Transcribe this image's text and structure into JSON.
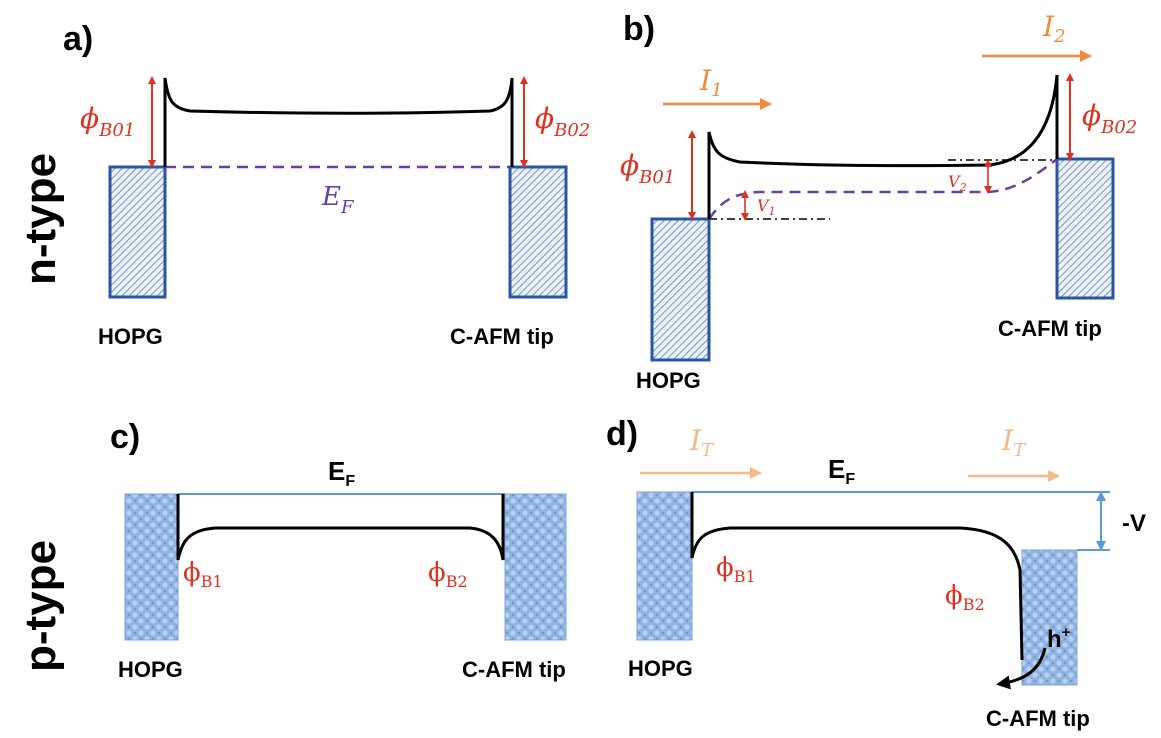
{
  "rows": {
    "top": "n-type",
    "bottom": "p-type"
  },
  "panels": {
    "a": {
      "label": "a)",
      "phi_left": "ϕ",
      "phi_left_sub": "B01",
      "phi_right": "ϕ",
      "phi_right_sub": "B02",
      "fermi": "E",
      "fermi_sub": "F",
      "left_electrode": "HOPG",
      "right_electrode": "C-AFM tip"
    },
    "b": {
      "label": "b)",
      "current_left": "I",
      "current_left_sub": "1",
      "current_right": "I",
      "current_right_sub": "2",
      "phi_left": "ϕ",
      "phi_left_sub": "B01",
      "phi_right": "ϕ",
      "phi_right_sub": "B02",
      "v_left": "V",
      "v_left_sub": "1",
      "v_right": "V",
      "v_right_sub": "2",
      "left_electrode": "HOPG",
      "right_electrode": "C-AFM tip"
    },
    "c": {
      "label": "c)",
      "fermi": "E",
      "fermi_sub": "F",
      "phi_left": "ϕ",
      "phi_left_sub": "B1",
      "phi_right": "ϕ",
      "phi_right_sub": "B2",
      "left_electrode": "HOPG",
      "right_electrode": "C-AFM tip"
    },
    "d": {
      "label": "d)",
      "current_left": "I",
      "current_left_sub": "T",
      "current_right": "I",
      "current_right_sub": "T",
      "fermi": "E",
      "fermi_sub": "F",
      "phi_left": "ϕ",
      "phi_left_sub": "B1",
      "phi_right": "ϕ",
      "phi_right_sub": "B2",
      "bias": "-V",
      "carrier": "h",
      "carrier_sup": "+",
      "left_electrode": "HOPG",
      "right_electrode": "C-AFM tip"
    }
  },
  "colors": {
    "barrier_red": "#e0301e",
    "fermi_purple": "#6a3fa3",
    "current_orange": "#f08a3c",
    "electrode_blue": "#2a55a0",
    "fermi_line_blue": "#5b9bd5"
  }
}
